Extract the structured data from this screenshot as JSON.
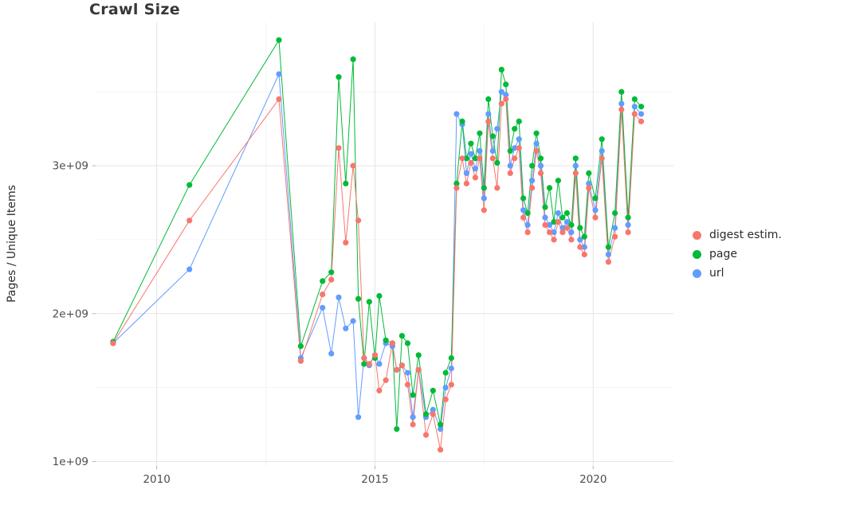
{
  "title": "Crawl Size",
  "ylabel": "Pages / Unique Items",
  "chart_data": {
    "type": "line",
    "title": "Crawl Size",
    "xlabel": "",
    "ylabel": "Pages / Unique Items",
    "y_unit": "1e+09 (values in billions)",
    "xlim": [
      2008.6,
      2021.84
    ],
    "ylim": [
      0.97,
      3.97
    ],
    "grid": true,
    "legend_position": "right",
    "xticks": [
      {
        "value": 2010,
        "label": "2010"
      },
      {
        "value": 2015,
        "label": "2015"
      },
      {
        "value": 2020,
        "label": "2020"
      }
    ],
    "yticks": [
      {
        "value": 1.0,
        "label": "1e+09"
      },
      {
        "value": 2.0,
        "label": "2e+09"
      },
      {
        "value": 3.0,
        "label": "3e+09"
      }
    ],
    "x_minor_ticks": [
      2012.5,
      2017.5
    ],
    "y_minor_ticks": [
      1.5,
      2.5,
      3.5
    ],
    "x": [
      2009.0,
      2010.75,
      2012.8,
      2013.3,
      2013.8,
      2014.0,
      2014.17,
      2014.33,
      2014.5,
      2014.62,
      2014.75,
      2014.87,
      2015.0,
      2015.1,
      2015.25,
      2015.4,
      2015.5,
      2015.62,
      2015.75,
      2015.87,
      2016.0,
      2016.17,
      2016.33,
      2016.5,
      2016.62,
      2016.75,
      2016.87,
      2017.0,
      2017.1,
      2017.2,
      2017.3,
      2017.4,
      2017.5,
      2017.6,
      2017.7,
      2017.8,
      2017.9,
      2018.0,
      2018.1,
      2018.2,
      2018.3,
      2018.4,
      2018.5,
      2018.6,
      2018.7,
      2018.8,
      2018.9,
      2019.0,
      2019.1,
      2019.2,
      2019.3,
      2019.4,
      2019.5,
      2019.6,
      2019.7,
      2019.8,
      2019.9,
      2020.05,
      2020.2,
      2020.35,
      2020.5,
      2020.65,
      2020.8,
      2020.95,
      2021.1
    ],
    "series": [
      {
        "name": "digest estim.",
        "color": "#F8766D",
        "values": [
          1.8,
          2.63,
          3.45,
          1.68,
          2.13,
          2.23,
          3.12,
          2.48,
          3.0,
          2.63,
          1.7,
          1.66,
          1.72,
          1.48,
          1.55,
          1.8,
          1.62,
          1.65,
          1.52,
          1.25,
          1.62,
          1.18,
          1.32,
          1.08,
          1.42,
          1.52,
          2.85,
          3.05,
          2.88,
          3.02,
          2.92,
          3.05,
          2.7,
          3.3,
          3.05,
          2.85,
          3.42,
          3.45,
          2.95,
          3.05,
          3.12,
          2.65,
          2.55,
          2.85,
          3.1,
          2.95,
          2.6,
          2.55,
          2.5,
          2.62,
          2.55,
          2.58,
          2.5,
          2.95,
          2.45,
          2.4,
          2.85,
          2.65,
          3.05,
          2.35,
          2.52,
          3.38,
          2.55,
          3.35,
          3.3
        ]
      },
      {
        "name": "page",
        "color": "#00BA38",
        "values": [
          1.81,
          2.87,
          3.85,
          1.78,
          2.22,
          2.28,
          3.6,
          2.88,
          3.72,
          2.1,
          1.66,
          2.08,
          1.7,
          2.12,
          1.82,
          1.8,
          1.22,
          1.85,
          1.8,
          1.45,
          1.72,
          1.32,
          1.48,
          1.25,
          1.6,
          1.7,
          2.88,
          3.3,
          3.05,
          3.15,
          3.05,
          3.22,
          2.85,
          3.45,
          3.2,
          3.02,
          3.65,
          3.55,
          3.1,
          3.25,
          3.3,
          2.78,
          2.68,
          3.0,
          3.22,
          3.05,
          2.72,
          2.85,
          2.62,
          2.9,
          2.65,
          2.68,
          2.6,
          3.05,
          2.58,
          2.52,
          2.95,
          2.78,
          3.18,
          2.45,
          2.68,
          3.5,
          2.65,
          3.45,
          3.4
        ]
      },
      {
        "name": "url",
        "color": "#619CFF",
        "values": [
          1.8,
          2.3,
          3.62,
          1.7,
          2.04,
          1.73,
          2.11,
          1.9,
          1.95,
          1.3,
          1.7,
          1.65,
          1.72,
          1.66,
          1.8,
          1.78,
          1.62,
          1.65,
          1.6,
          1.3,
          1.62,
          1.3,
          1.35,
          1.22,
          1.5,
          1.63,
          3.35,
          3.28,
          2.95,
          3.08,
          2.98,
          3.1,
          2.78,
          3.35,
          3.1,
          3.25,
          3.5,
          3.48,
          3.0,
          3.12,
          3.18,
          2.7,
          2.6,
          2.9,
          3.15,
          3.0,
          2.65,
          2.6,
          2.55,
          2.68,
          2.58,
          2.62,
          2.55,
          3.0,
          2.5,
          2.45,
          2.88,
          2.7,
          3.1,
          2.4,
          2.58,
          3.42,
          2.6,
          3.4,
          3.35
        ]
      }
    ],
    "colors": {
      "grid_major": "#e4e4e4",
      "grid_minor": "#f4f4f4",
      "tick_mark": "#b3b3b3",
      "tick_label": "#4d4d4d",
      "background": "#ffffff"
    }
  }
}
